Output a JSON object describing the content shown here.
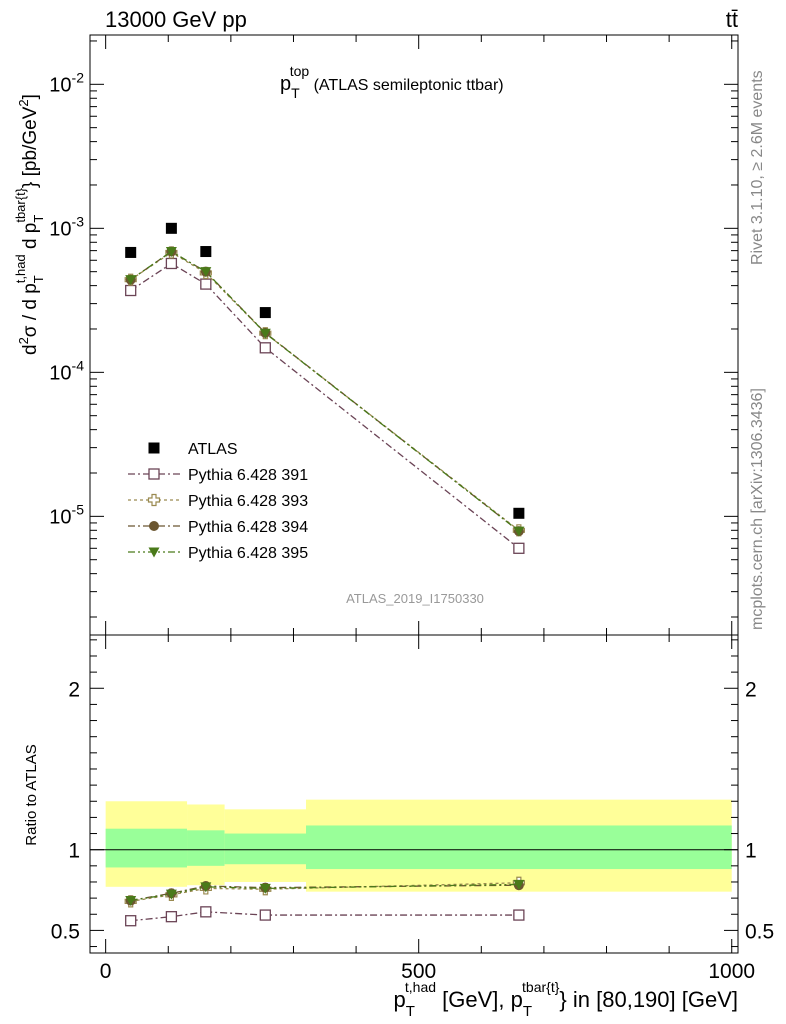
{
  "header": {
    "left": "13000 GeV pp",
    "right": "tt̄"
  },
  "side_labels": {
    "top": "Rivet 3.1.10, ≥ 2.6M events",
    "bottom": "mcplots.cern.ch [arXiv:1306.3436]"
  },
  "chart_data": [
    {
      "type": "scatter",
      "panel": "main",
      "title": {
        "main": "p",
        "sub": "T",
        "sup": "top",
        "rest": " (ATLAS semileptonic ttbar)"
      },
      "ylabel": "d²σ / d p_T^t,had d p_T^tbar{t} [pb/GeV²]",
      "yscale": "log",
      "ylim": [
        1.5e-06,
        0.022
      ],
      "xlim": [
        -25,
        1010
      ],
      "watermark": "ATLAS_2019_I1750330",
      "y_ticks": [
        {
          "v": 1e-05,
          "m": "10",
          "e": "-5"
        },
        {
          "v": 0.0001,
          "m": "10",
          "e": "-4"
        },
        {
          "v": 0.001,
          "m": "10",
          "e": "-3"
        },
        {
          "v": 0.01,
          "m": "10",
          "e": "-2"
        }
      ],
      "x": [
        40,
        105,
        160,
        255,
        660
      ],
      "series": [
        {
          "name": "ATLAS",
          "values": [
            0.00068,
            0.001,
            0.00069,
            0.00026,
            1.05e-05
          ],
          "marker": "square-filled",
          "color": "#000000"
        },
        {
          "name": "Pythia 6.428 391",
          "values": [
            0.00037,
            0.00057,
            0.00041,
            0.000148,
            6e-06
          ],
          "marker": "square-open",
          "color": "#6b4456"
        },
        {
          "name": "Pythia 6.428 393",
          "values": [
            0.00044,
            0.00068,
            0.00049,
            0.000187,
            8e-06
          ],
          "marker": "cross-open",
          "color": "#9a8a50"
        },
        {
          "name": "Pythia 6.428 394",
          "values": [
            0.00044,
            0.00069,
            0.0005,
            0.000188,
            7.9e-06
          ],
          "marker": "circle-filled",
          "color": "#6b5630"
        },
        {
          "name": "Pythia 6.428 395",
          "values": [
            0.00044,
            0.00069,
            0.0005,
            0.000187,
            7.9e-06
          ],
          "marker": "triangle-filled",
          "color": "#4a7a1a"
        }
      ]
    },
    {
      "type": "scatter",
      "panel": "ratio",
      "ylabel": "Ratio to ATLAS",
      "ylim": [
        0.36,
        2.33
      ],
      "xlim": [
        -25,
        1010
      ],
      "xlabel": {
        "p1": "p",
        "sub1": "T",
        "sup1": "t,had",
        "mid": " [GeV], p",
        "sub2": "T",
        "sup2": "tbar{t}",
        "rest": "} in [80,190] [GeV]"
      },
      "x_ticks": [
        {
          "v": 0,
          "label": "0"
        },
        {
          "v": 500,
          "label": "500"
        },
        {
          "v": 1000,
          "label": "1000"
        }
      ],
      "y_ticks": [
        {
          "v": 0.5,
          "label": "0.5"
        },
        {
          "v": 1,
          "label": "1"
        },
        {
          "v": 2,
          "label": "2"
        }
      ],
      "bands": [
        {
          "x0": 0,
          "x1": 130,
          "yellow": [
            0.77,
            1.3
          ],
          "green": [
            0.89,
            1.13
          ]
        },
        {
          "x0": 130,
          "x1": 190,
          "yellow": [
            0.78,
            1.28
          ],
          "green": [
            0.9,
            1.12
          ]
        },
        {
          "x0": 190,
          "x1": 320,
          "yellow": [
            0.8,
            1.25
          ],
          "green": [
            0.91,
            1.1
          ]
        },
        {
          "x0": 320,
          "x1": 1000,
          "yellow": [
            0.74,
            1.31
          ],
          "green": [
            0.88,
            1.15
          ]
        }
      ],
      "x": [
        40,
        105,
        160,
        255,
        660
      ],
      "series": [
        {
          "name": "Pythia 6.428 391",
          "values": [
            0.56,
            0.585,
            0.615,
            0.595,
            0.595
          ],
          "marker": "square-open",
          "color": "#6b4456"
        },
        {
          "name": "Pythia 6.428 393",
          "values": [
            0.68,
            0.72,
            0.76,
            0.755,
            0.795
          ],
          "marker": "cross-open",
          "color": "#9a8a50"
        },
        {
          "name": "Pythia 6.428 394",
          "values": [
            0.685,
            0.73,
            0.775,
            0.765,
            0.78
          ],
          "marker": "circle-filled",
          "color": "#6b5630"
        },
        {
          "name": "Pythia 6.428 395",
          "values": [
            0.685,
            0.725,
            0.77,
            0.76,
            0.785
          ],
          "marker": "triangle-filled",
          "color": "#4a7a1a"
        }
      ]
    }
  ]
}
